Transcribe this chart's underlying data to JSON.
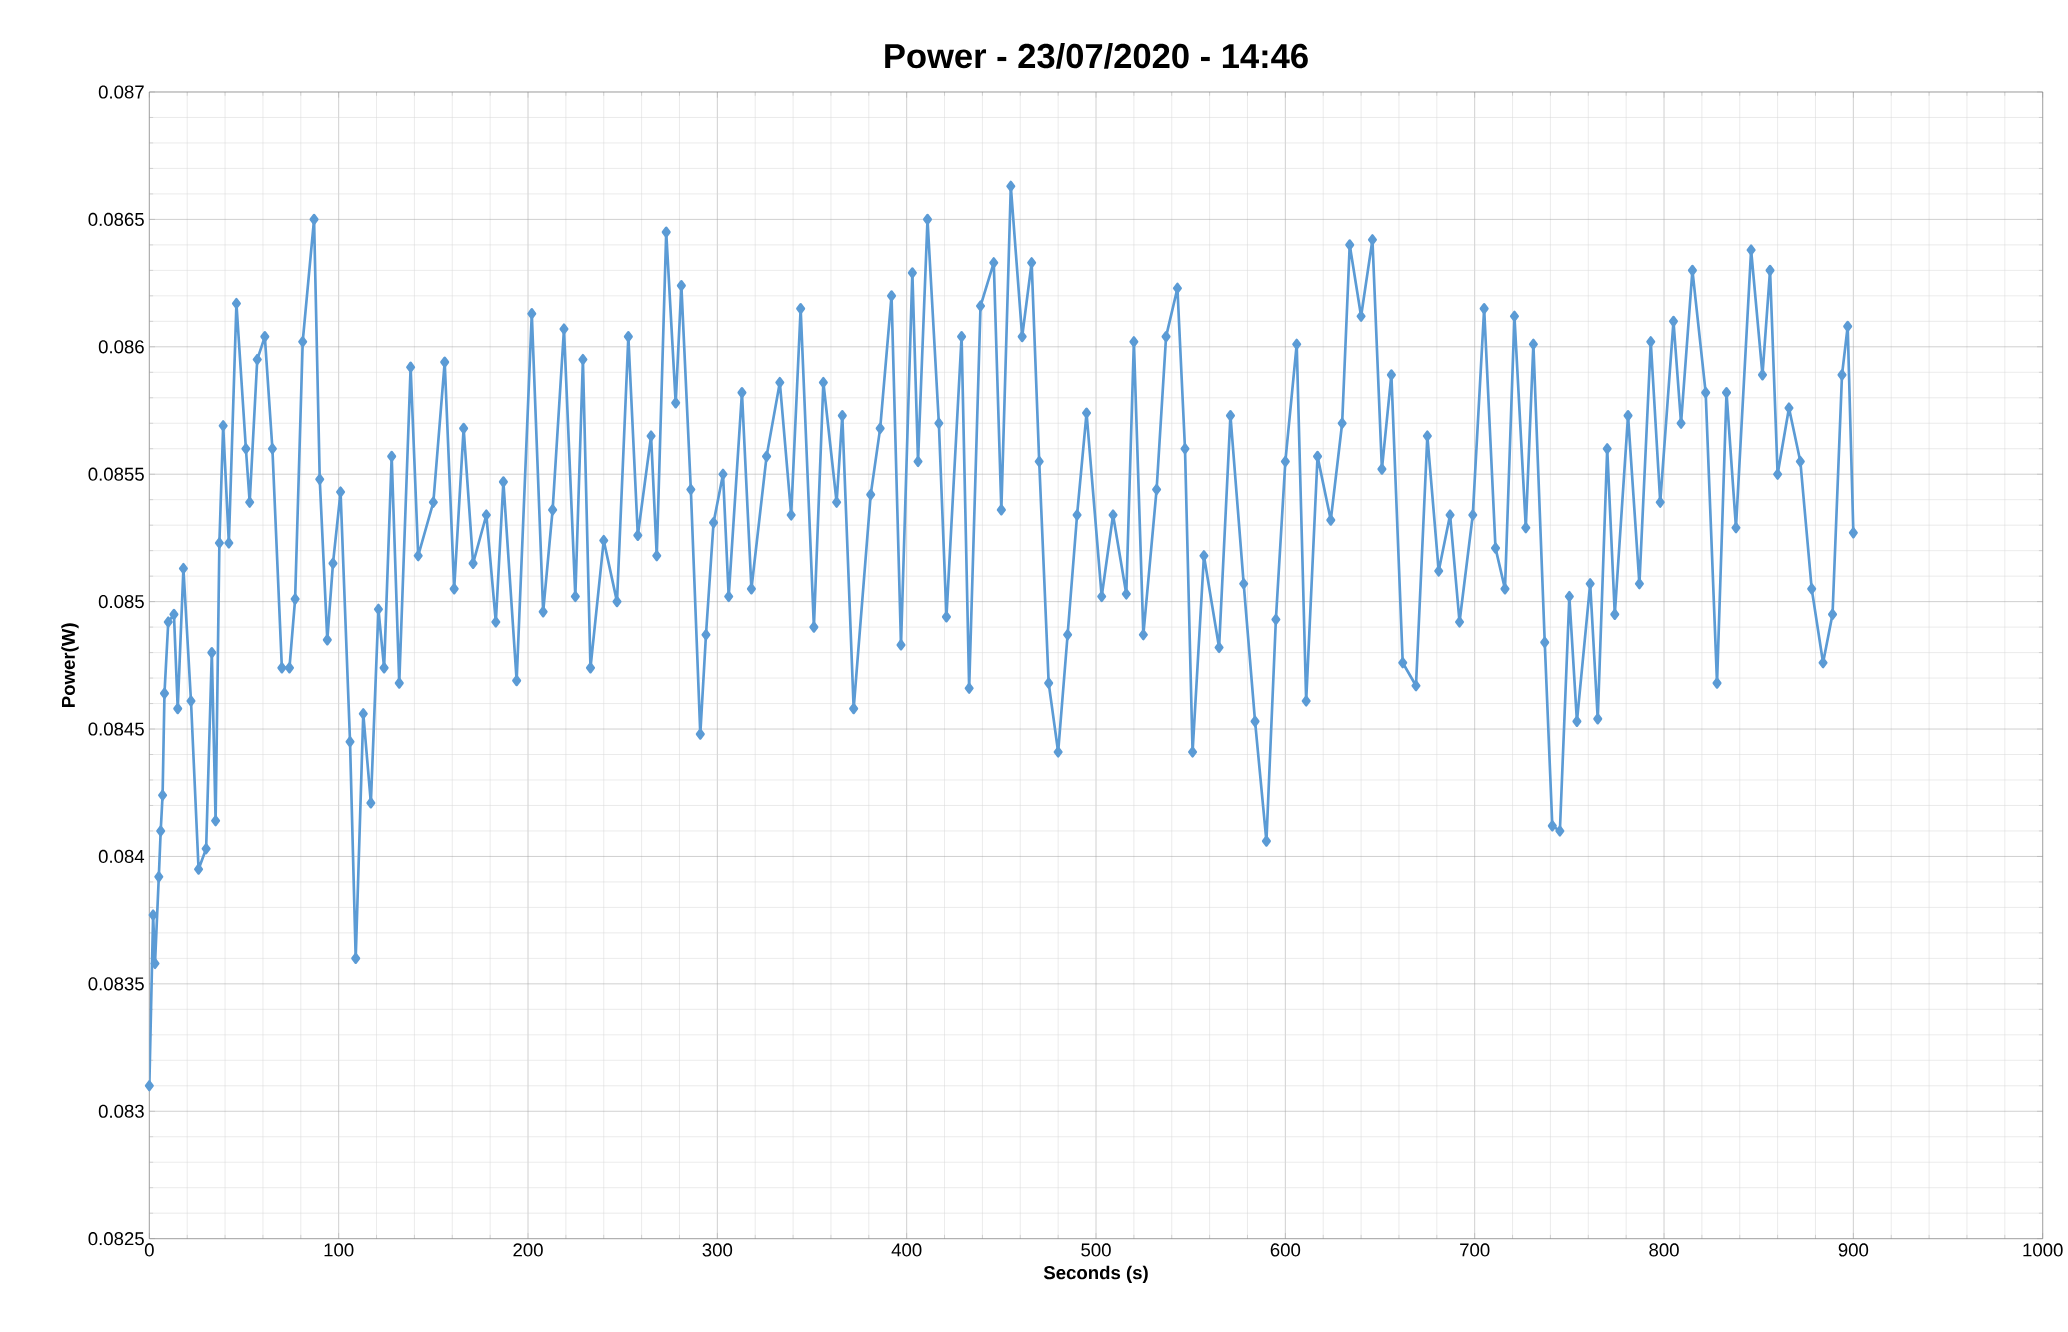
{
  "chart_data": {
    "type": "line",
    "title": "Power - 23/07/2020 - 14:46",
    "xlabel": "Seconds (s)",
    "ylabel": "Power(W)",
    "color": "#5b9bd5",
    "marker": "diamond",
    "grid": true,
    "xlim": [
      0,
      1000
    ],
    "xticks": [
      0,
      100,
      200,
      300,
      400,
      500,
      600,
      700,
      800,
      900,
      1000
    ],
    "ylim": [
      0.0825,
      0.087
    ],
    "yticks": [
      0.0825,
      0.083,
      0.0835,
      0.084,
      0.0845,
      0.085,
      0.0855,
      0.086,
      0.0865,
      0.087
    ],
    "x": [
      0,
      2,
      3,
      5,
      6,
      7,
      8,
      10,
      13,
      15,
      18,
      22,
      26,
      30,
      33,
      35,
      37,
      39,
      42,
      46,
      51,
      53,
      57,
      61,
      65,
      70,
      74,
      77,
      81,
      87,
      90,
      94,
      97,
      101,
      106,
      109,
      113,
      117,
      121,
      124,
      128,
      132,
      138,
      142,
      150,
      156,
      161,
      166,
      171,
      178,
      183,
      187,
      194,
      202,
      208,
      213,
      219,
      225,
      229,
      233,
      240,
      247,
      253,
      258,
      265,
      268,
      273,
      278,
      281,
      286,
      291,
      294,
      298,
      303,
      306,
      313,
      318,
      326,
      333,
      339,
      344,
      351,
      356,
      363,
      366,
      372,
      381,
      386,
      392,
      397,
      403,
      406,
      411,
      417,
      421,
      429,
      433,
      439,
      446,
      450,
      455,
      461,
      466,
      470,
      475,
      480,
      485,
      490,
      495,
      503,
      509,
      516,
      520,
      525,
      532,
      537,
      543,
      547,
      551,
      557,
      565,
      571,
      578,
      584,
      590,
      595,
      600,
      606,
      611,
      617,
      624,
      630,
      634,
      640,
      646,
      651,
      656,
      662,
      669,
      675,
      681,
      687,
      692,
      699,
      705,
      711,
      716,
      721,
      727,
      731,
      737,
      741,
      745,
      750,
      754,
      761,
      765,
      770,
      774,
      781,
      787,
      793,
      798,
      805,
      809,
      815,
      822,
      828,
      833,
      838,
      846,
      852,
      856,
      860,
      866,
      872,
      878,
      884,
      889,
      894,
      897,
      900
    ],
    "values": [
      0.0831,
      0.08377,
      0.08358,
      0.08392,
      0.0841,
      0.08424,
      0.08464,
      0.08492,
      0.08495,
      0.08458,
      0.08513,
      0.08461,
      0.08395,
      0.08403,
      0.0848,
      0.08414,
      0.08523,
      0.08569,
      0.08523,
      0.08617,
      0.0856,
      0.08539,
      0.08595,
      0.08604,
      0.0856,
      0.08474,
      0.08474,
      0.08501,
      0.08602,
      0.0865,
      0.08548,
      0.08485,
      0.08515,
      0.08543,
      0.08445,
      0.0836,
      0.08456,
      0.08421,
      0.08497,
      0.08474,
      0.08557,
      0.08468,
      0.08592,
      0.08518,
      0.08539,
      0.08594,
      0.08505,
      0.08568,
      0.08515,
      0.08534,
      0.08492,
      0.08547,
      0.08469,
      0.08613,
      0.08496,
      0.08536,
      0.08607,
      0.08502,
      0.08595,
      0.08474,
      0.08524,
      0.085,
      0.08604,
      0.08526,
      0.08565,
      0.08518,
      0.08645,
      0.08578,
      0.08624,
      0.08544,
      0.08448,
      0.08487,
      0.08531,
      0.0855,
      0.08502,
      0.08582,
      0.08505,
      0.08557,
      0.08586,
      0.08534,
      0.08615,
      0.0849,
      0.08586,
      0.08539,
      0.08573,
      0.08458,
      0.08542,
      0.08568,
      0.0862,
      0.08483,
      0.08629,
      0.08555,
      0.0865,
      0.0857,
      0.08494,
      0.08604,
      0.08466,
      0.08616,
      0.08633,
      0.08536,
      0.08663,
      0.08604,
      0.08633,
      0.08555,
      0.08468,
      0.08441,
      0.08487,
      0.08534,
      0.08574,
      0.08502,
      0.08534,
      0.08503,
      0.08602,
      0.08487,
      0.08544,
      0.08604,
      0.08623,
      0.0856,
      0.08441,
      0.08518,
      0.08482,
      0.08573,
      0.08507,
      0.08453,
      0.08406,
      0.08493,
      0.08555,
      0.08601,
      0.08461,
      0.08557,
      0.08532,
      0.0857,
      0.0864,
      0.08612,
      0.08642,
      0.08552,
      0.08589,
      0.08476,
      0.08467,
      0.08565,
      0.08512,
      0.08534,
      0.08492,
      0.08534,
      0.08615,
      0.08521,
      0.08505,
      0.08612,
      0.08529,
      0.08601,
      0.08484,
      0.08412,
      0.0841,
      0.08502,
      0.08453,
      0.08507,
      0.08454,
      0.0856,
      0.08495,
      0.08573,
      0.08507,
      0.08602,
      0.08539,
      0.0861,
      0.0857,
      0.0863,
      0.08582,
      0.08468,
      0.08582,
      0.08529,
      0.08638,
      0.08589,
      0.0863,
      0.0855,
      0.08576,
      0.08555,
      0.08505,
      0.08476,
      0.08495,
      0.08589,
      0.08608,
      0.08527
    ]
  }
}
